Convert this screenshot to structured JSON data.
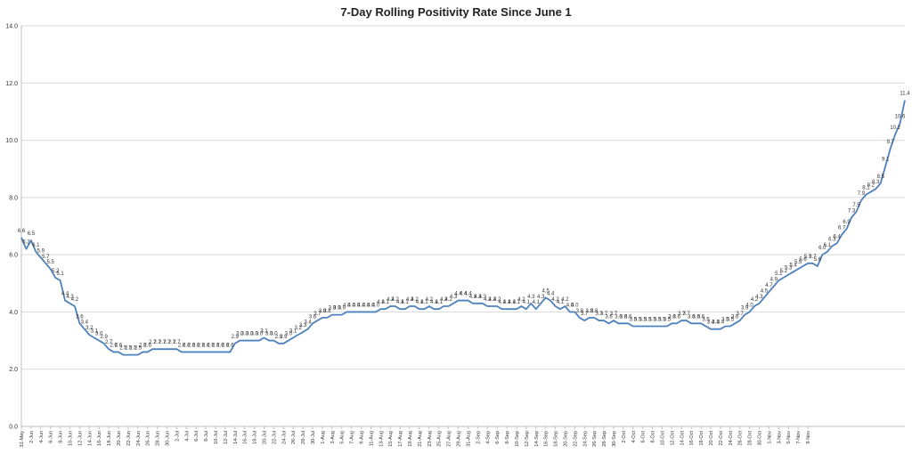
{
  "chart_data": {
    "type": "line",
    "title": "7-Day Rolling Positivity Rate Since June 1",
    "xlabel": "",
    "ylabel": "",
    "ylim": [
      0,
      14
    ],
    "yticks": [
      "0.0",
      "2.0",
      "4.0",
      "6.0",
      "8.0",
      "10.0",
      "12.0",
      "14.0"
    ],
    "grid": true,
    "legend": "none",
    "line_color": "#4f81bd",
    "start_date": "2020-05-31",
    "end_date": "2020-11-09",
    "x_tick_labels": [
      "31-May",
      "2-Jun",
      "4-Jun",
      "6-Jun",
      "8-Jun",
      "10-Jun",
      "12-Jun",
      "14-Jun",
      "16-Jun",
      "18-Jun",
      "20-Jun",
      "22-Jun",
      "24-Jun",
      "26-Jun",
      "28-Jun",
      "30-Jun",
      "2-Jul",
      "4-Jul",
      "6-Jul",
      "8-Jul",
      "10-Jul",
      "12-Jul",
      "14-Jul",
      "16-Jul",
      "18-Jul",
      "20-Jul",
      "22-Jul",
      "24-Jul",
      "26-Jul",
      "28-Jul",
      "30-Jul",
      "1-Aug",
      "3-Aug",
      "5-Aug",
      "7-Aug",
      "9-Aug",
      "11-Aug",
      "13-Aug",
      "15-Aug",
      "17-Aug",
      "19-Aug",
      "21-Aug",
      "23-Aug",
      "25-Aug",
      "27-Aug",
      "29-Aug",
      "31-Aug",
      "2-Sep",
      "4-Sep",
      "6-Sep",
      "8-Sep",
      "10-Sep",
      "12-Sep",
      "14-Sep",
      "16-Sep",
      "18-Sep",
      "20-Sep",
      "22-Sep",
      "24-Sep",
      "26-Sep",
      "28-Sep",
      "30-Sep",
      "2-Oct",
      "4-Oct",
      "6-Oct",
      "8-Oct",
      "10-Oct",
      "12-Oct",
      "14-Oct",
      "16-Oct",
      "18-Oct",
      "20-Oct",
      "22-Oct",
      "24-Oct",
      "26-Oct",
      "28-Oct",
      "30-Oct",
      "1-Nov",
      "3-Nov",
      "5-Nov",
      "7-Nov",
      "9-Nov"
    ],
    "series": [
      {
        "values": [
          6.6,
          6.2,
          6.5,
          6.1,
          5.9,
          5.7,
          5.5,
          5.2,
          5.1,
          4.4,
          4.3,
          4.2,
          3.6,
          3.4,
          3.2,
          3.1,
          3.0,
          2.9,
          2.7,
          2.6,
          2.6,
          2.5,
          2.5,
          2.5,
          2.5,
          2.6,
          2.6,
          2.7,
          2.7,
          2.7,
          2.7,
          2.7,
          2.7,
          2.6,
          2.6,
          2.6,
          2.6,
          2.6,
          2.6,
          2.6,
          2.6,
          2.6,
          2.6,
          2.6,
          2.9,
          3.0,
          3.0,
          3.0,
          3.0,
          3.0,
          3.1,
          3.0,
          3.0,
          2.9,
          2.9,
          3.0,
          3.1,
          3.2,
          3.3,
          3.4,
          3.6,
          3.7,
          3.8,
          3.8,
          3.9,
          3.9,
          3.9,
          4.0,
          4.0,
          4.0,
          4.0,
          4.0,
          4.0,
          4.0,
          4.1,
          4.1,
          4.2,
          4.2,
          4.1,
          4.1,
          4.2,
          4.2,
          4.1,
          4.1,
          4.2,
          4.1,
          4.1,
          4.2,
          4.2,
          4.3,
          4.4,
          4.4,
          4.4,
          4.3,
          4.3,
          4.3,
          4.2,
          4.2,
          4.2,
          4.1,
          4.1,
          4.1,
          4.1,
          4.2,
          4.1,
          4.3,
          4.1,
          4.3,
          4.5,
          4.4,
          4.2,
          4.1,
          4.2,
          4.0,
          4.0,
          3.8,
          3.7,
          3.8,
          3.8,
          3.7,
          3.7,
          3.6,
          3.7,
          3.6,
          3.6,
          3.6,
          3.5,
          3.5,
          3.5,
          3.5,
          3.5,
          3.5,
          3.5,
          3.5,
          3.6,
          3.6,
          3.7,
          3.7,
          3.6,
          3.6,
          3.6,
          3.5,
          3.4,
          3.4,
          3.4,
          3.5,
          3.5,
          3.6,
          3.7,
          3.9,
          4.0,
          4.2,
          4.3,
          4.5,
          4.7,
          4.9,
          5.1,
          5.2,
          5.3,
          5.4,
          5.5,
          5.6,
          5.7,
          5.7,
          5.6,
          6.0,
          6.1,
          6.3,
          6.4,
          6.7,
          6.9,
          7.3,
          7.5,
          7.9,
          8.1,
          8.2,
          8.3,
          8.5,
          9.1,
          9.7,
          10.2,
          10.6,
          11.4
        ]
      }
    ]
  }
}
